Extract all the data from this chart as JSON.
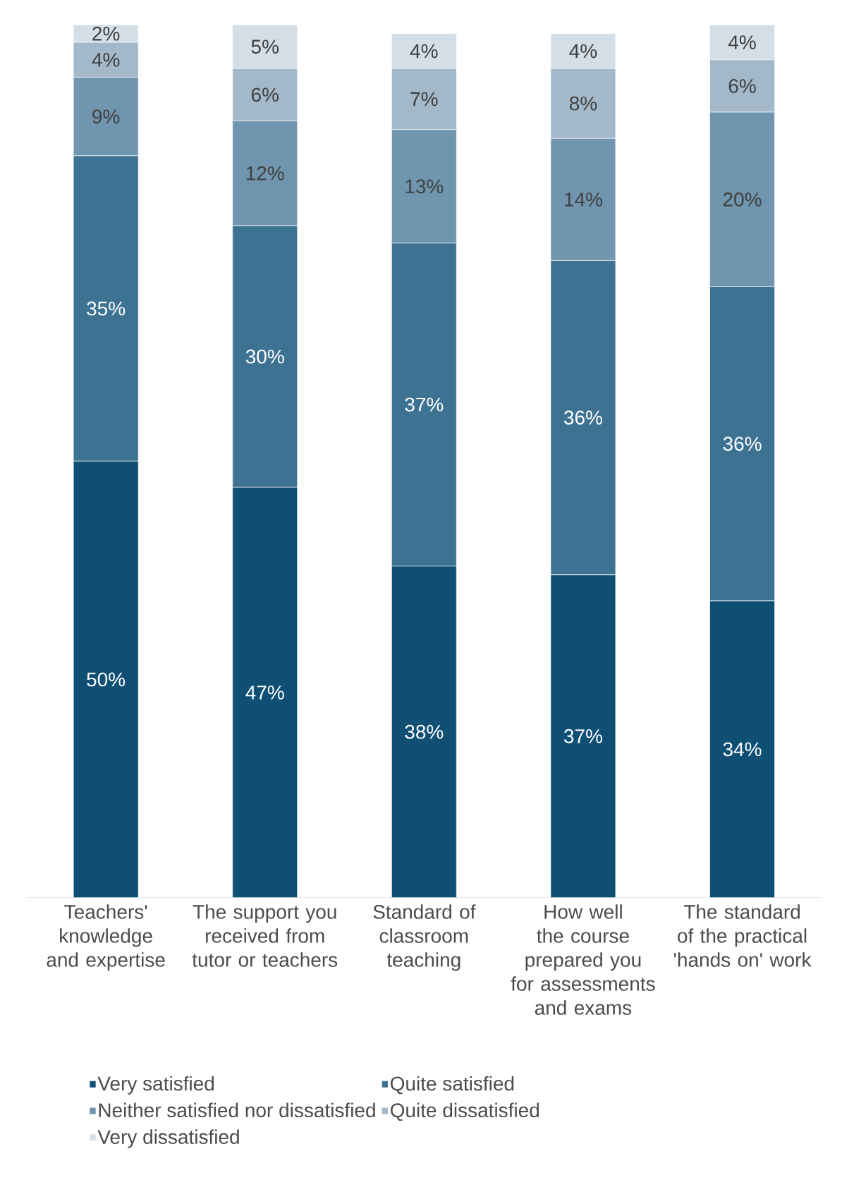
{
  "chart_data": {
    "type": "bar",
    "stacked": true,
    "legend": "bottom",
    "categories": [
      "Teachers' knowledge and expertise",
      "The support you received from tutor or teachers",
      "Standard of classroom teaching",
      "How well the course prepared you for assessments and exams",
      "The standard of the practical 'hands on' work"
    ],
    "series": [
      {
        "name": "Very satisfied",
        "color": "#0f4f74",
        "values": [
          50,
          47,
          38,
          37,
          34
        ],
        "value_labels": [
          "50%",
          "47%",
          "38%",
          "37%",
          "34%"
        ]
      },
      {
        "name": "Quite satisfied",
        "color": "#3e7292",
        "values": [
          35,
          30,
          37,
          36,
          36
        ],
        "value_labels": [
          "35%",
          "30%",
          "37%",
          "36%",
          "36%"
        ]
      },
      {
        "name": "Neither satisfied nor dissatisfied",
        "color": "#7095ae",
        "values": [
          9,
          12,
          13,
          14,
          20
        ],
        "value_labels": [
          "9%",
          "12%",
          "13%",
          "14%",
          "20%"
        ]
      },
      {
        "name": "Quite dissatisfied",
        "color": "#a3b9c9",
        "values": [
          4,
          6,
          7,
          8,
          6
        ],
        "value_labels": [
          "4%",
          "6%",
          "7%",
          "8%",
          "6%"
        ]
      },
      {
        "name": "Very dissatisfied",
        "color": "#d3dee6",
        "values": [
          2,
          5,
          4,
          4,
          4
        ],
        "value_labels": [
          "2%",
          "5%",
          "4%",
          "4%",
          "4%"
        ]
      }
    ]
  }
}
